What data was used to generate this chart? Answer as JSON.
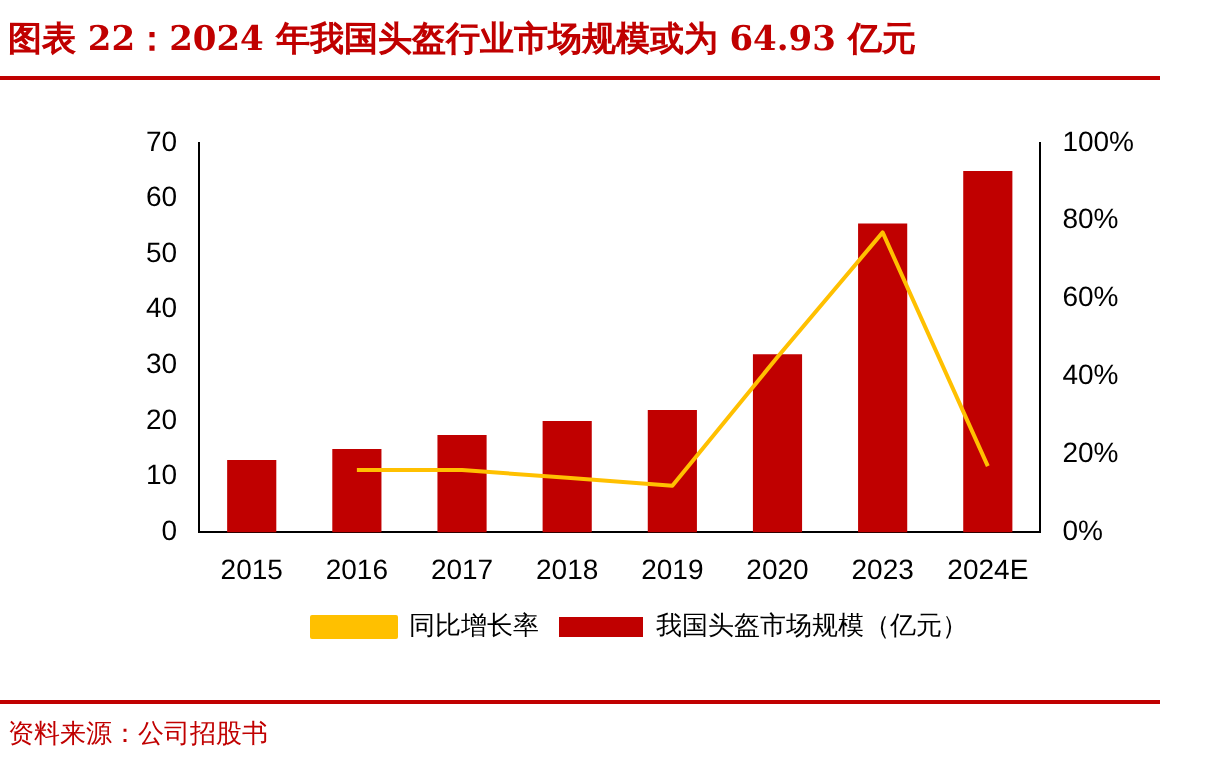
{
  "chart_data": {
    "type": "bar",
    "title": "图表 22：2024 年我国头盔行业市场规模或为 64.93 亿元",
    "categories": [
      "2015",
      "2016",
      "2017",
      "2018",
      "2019",
      "2020",
      "2023",
      "2024E"
    ],
    "series": [
      {
        "name": "我国头盔市场规模（亿元）",
        "color": "#c00000",
        "values": [
          13,
          15,
          17.5,
          20,
          22,
          32,
          55.5,
          64.93
        ]
      },
      {
        "name": "同比增长率",
        "type": "line",
        "axis": "y2",
        "color": "#ffc000",
        "values": [
          null,
          16,
          16,
          14,
          12,
          45,
          77,
          17
        ]
      }
    ],
    "ylim": [
      0,
      70
    ],
    "yticks": [
      0,
      10,
      20,
      30,
      40,
      50,
      60,
      70
    ],
    "y2lim": [
      0,
      100
    ],
    "y2ticks": [
      {
        "value": 0,
        "label": "0%"
      },
      {
        "value": 20,
        "label": "20%"
      },
      {
        "value": 40,
        "label": "40%"
      },
      {
        "value": 60,
        "label": "60%"
      },
      {
        "value": 80,
        "label": "80%"
      },
      {
        "value": 100,
        "label": "100%"
      }
    ],
    "grid": false,
    "legend": "bottom",
    "marker": "none",
    "annotations": [
      "资料来源：公司招股书"
    ]
  }
}
